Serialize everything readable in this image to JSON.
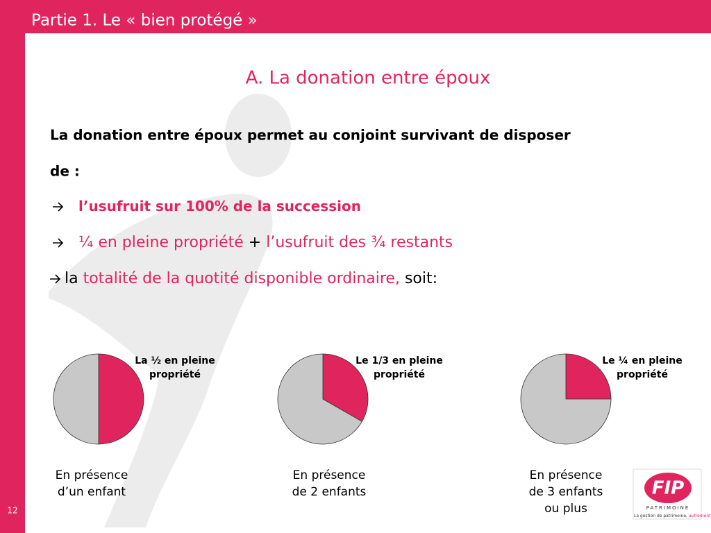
{
  "header": {
    "title": "Partie 1. Le « bien protégé »"
  },
  "page_number": "12",
  "subtitle": "A. La donation entre époux",
  "intro": [
    "La donation entre époux permet au conjoint survivant de disposer",
    "de :"
  ],
  "bullets": [
    {
      "arrow": true,
      "bold": true,
      "segments": [
        {
          "text": "l’usufruit sur 100% de la succession",
          "color": "#e0245e"
        }
      ]
    },
    {
      "arrow": true,
      "bold": false,
      "segments": [
        {
          "text": "¼ en pleine propriété",
          "color": "#e0245e"
        },
        {
          "text": " + ",
          "color": "#000000"
        },
        {
          "text": "l’usufruit des ¾ restants",
          "color": "#e0245e"
        }
      ]
    },
    {
      "arrow": true,
      "bold": false,
      "segments": [
        {
          "text": "la ",
          "color": "#000000"
        },
        {
          "text": "totalité de la quotité disponible ordinaire,",
          "color": "#e0245e"
        },
        {
          "text": " soit:",
          "color": "#000000"
        }
      ]
    }
  ],
  "charts": [
    {
      "type": "pie",
      "label": [
        "La ½ en pleine",
        "propriété"
      ],
      "caption": [
        "En présence",
        "d’un enfant"
      ],
      "values": [
        50,
        50
      ],
      "colors": [
        "#e0245e",
        "#c8c8c8"
      ]
    },
    {
      "type": "pie",
      "label": [
        "Le 1/3 en pleine",
        "propriété"
      ],
      "caption": [
        "En présence",
        "de 2 enfants"
      ],
      "values": [
        33.3,
        66.7
      ],
      "colors": [
        "#e0245e",
        "#c8c8c8"
      ]
    },
    {
      "type": "pie",
      "label": [
        "Le ¼ en pleine",
        "propriété"
      ],
      "caption": [
        "En présence",
        "de 3 enfants",
        "ou plus"
      ],
      "values": [
        25,
        75
      ],
      "colors": [
        "#e0245e",
        "#c8c8c8"
      ]
    }
  ],
  "logo": {
    "brand": "FIP",
    "name": "PATRIMOINE",
    "tagline": "La gestion de patrimoine,",
    "tagline_accent": "autrement"
  }
}
